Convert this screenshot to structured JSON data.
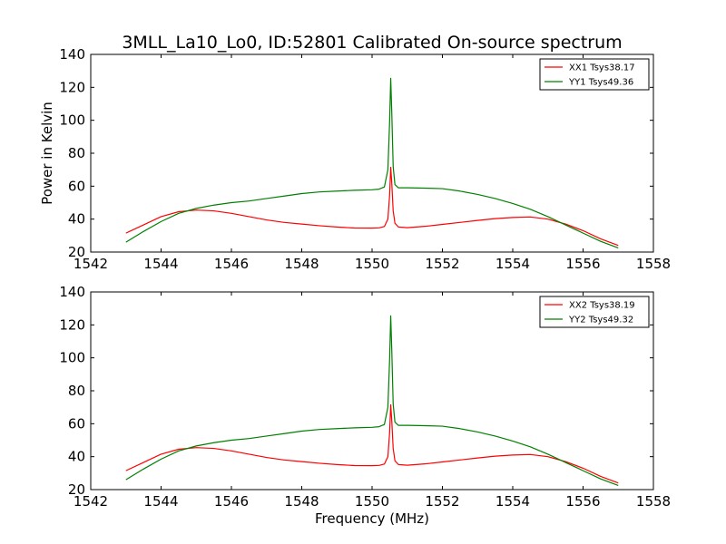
{
  "figure": {
    "title": "3MLL_La10_Lo0, ID:52801 Calibrated On-source spectrum",
    "ylabel": "Power in Kelvin",
    "xlabel": "Frequency (MHz)"
  },
  "chart_data": [
    {
      "type": "line",
      "title": "3MLL_La10_Lo0, ID:52801 Calibrated On-source spectrum",
      "ylabel": "Power in Kelvin",
      "xlabel": "",
      "xlim": [
        1542,
        1558
      ],
      "ylim": [
        20,
        140
      ],
      "xticks": [
        1542,
        1544,
        1546,
        1548,
        1550,
        1552,
        1554,
        1556,
        1558
      ],
      "yticks": [
        20,
        40,
        60,
        80,
        100,
        120,
        140
      ],
      "legend": "top-right",
      "series": [
        {
          "name": "XX1 Tsys38.17",
          "color": "#ff0000",
          "x": [
            1543.0,
            1543.5,
            1544.0,
            1544.5,
            1545.0,
            1545.5,
            1546.0,
            1546.5,
            1547.0,
            1547.5,
            1548.0,
            1548.5,
            1549.0,
            1549.5,
            1550.0,
            1550.2,
            1550.35,
            1550.45,
            1550.5,
            1550.53,
            1550.56,
            1550.6,
            1550.65,
            1550.75,
            1551.0,
            1551.5,
            1552.0,
            1552.5,
            1553.0,
            1553.5,
            1554.0,
            1554.5,
            1555.0,
            1555.5,
            1556.0,
            1556.5,
            1557.0
          ],
          "y": [
            31.5,
            36.5,
            41.5,
            44.5,
            45.5,
            45.0,
            43.5,
            41.5,
            39.5,
            38.0,
            37.0,
            36.0,
            35.2,
            34.6,
            34.5,
            34.7,
            35.5,
            40.0,
            55.0,
            71.5,
            62.0,
            45.0,
            37.5,
            35.2,
            34.8,
            35.6,
            36.8,
            38.0,
            39.2,
            40.3,
            41.0,
            41.3,
            40.0,
            37.0,
            33.0,
            28.0,
            24.0
          ]
        },
        {
          "name": "YY1 Tsys49.36",
          "color": "#008000",
          "x": [
            1543.0,
            1543.5,
            1544.0,
            1544.5,
            1545.0,
            1545.5,
            1546.0,
            1546.5,
            1547.0,
            1547.5,
            1548.0,
            1548.5,
            1549.0,
            1549.5,
            1550.0,
            1550.2,
            1550.35,
            1550.45,
            1550.5,
            1550.53,
            1550.56,
            1550.6,
            1550.65,
            1550.75,
            1551.0,
            1551.5,
            1552.0,
            1552.5,
            1553.0,
            1553.5,
            1554.0,
            1554.5,
            1555.0,
            1555.5,
            1556.0,
            1556.5,
            1557.0
          ],
          "y": [
            26.0,
            32.5,
            38.5,
            43.5,
            46.5,
            48.5,
            50.0,
            51.0,
            52.5,
            54.0,
            55.5,
            56.5,
            57.0,
            57.5,
            57.8,
            58.2,
            59.5,
            70.0,
            100.0,
            125.5,
            105.0,
            72.0,
            61.0,
            59.0,
            59.0,
            58.8,
            58.5,
            57.0,
            55.0,
            52.5,
            49.5,
            46.0,
            41.5,
            36.5,
            31.5,
            26.5,
            22.5
          ]
        }
      ]
    },
    {
      "type": "line",
      "title": "",
      "ylabel": "",
      "xlabel": "Frequency (MHz)",
      "xlim": [
        1542,
        1558
      ],
      "ylim": [
        20,
        140
      ],
      "xticks": [
        1542,
        1544,
        1546,
        1548,
        1550,
        1552,
        1554,
        1556,
        1558
      ],
      "yticks": [
        20,
        40,
        60,
        80,
        100,
        120,
        140
      ],
      "legend": "top-right",
      "series": [
        {
          "name": "XX2 Tsys38.19",
          "color": "#ff0000",
          "x": [
            1543.0,
            1543.5,
            1544.0,
            1544.5,
            1545.0,
            1545.5,
            1546.0,
            1546.5,
            1547.0,
            1547.5,
            1548.0,
            1548.5,
            1549.0,
            1549.5,
            1550.0,
            1550.2,
            1550.35,
            1550.45,
            1550.5,
            1550.53,
            1550.56,
            1550.6,
            1550.65,
            1550.75,
            1551.0,
            1551.5,
            1552.0,
            1552.5,
            1553.0,
            1553.5,
            1554.0,
            1554.5,
            1555.0,
            1555.5,
            1556.0,
            1556.5,
            1557.0
          ],
          "y": [
            31.5,
            36.5,
            41.5,
            44.5,
            45.5,
            45.0,
            43.5,
            41.5,
            39.5,
            38.0,
            37.0,
            36.0,
            35.2,
            34.6,
            34.5,
            34.7,
            35.5,
            40.0,
            55.0,
            71.5,
            62.0,
            45.0,
            37.5,
            35.2,
            34.8,
            35.6,
            36.8,
            38.0,
            39.2,
            40.3,
            41.0,
            41.3,
            40.0,
            37.0,
            33.0,
            28.0,
            24.0
          ]
        },
        {
          "name": "YY2 Tsys49.32",
          "color": "#008000",
          "x": [
            1543.0,
            1543.5,
            1544.0,
            1544.5,
            1545.0,
            1545.5,
            1546.0,
            1546.5,
            1547.0,
            1547.5,
            1548.0,
            1548.5,
            1549.0,
            1549.5,
            1550.0,
            1550.2,
            1550.35,
            1550.45,
            1550.5,
            1550.53,
            1550.56,
            1550.6,
            1550.65,
            1550.75,
            1551.0,
            1551.5,
            1552.0,
            1552.5,
            1553.0,
            1553.5,
            1554.0,
            1554.5,
            1555.0,
            1555.5,
            1556.0,
            1556.5,
            1557.0
          ],
          "y": [
            26.0,
            32.5,
            38.5,
            43.5,
            46.5,
            48.5,
            50.0,
            51.0,
            52.5,
            54.0,
            55.5,
            56.5,
            57.0,
            57.5,
            57.8,
            58.2,
            59.5,
            70.0,
            100.0,
            125.5,
            105.0,
            72.0,
            61.0,
            59.0,
            59.0,
            58.8,
            58.5,
            57.0,
            55.0,
            52.5,
            49.5,
            46.0,
            41.5,
            36.5,
            31.5,
            26.5,
            22.5
          ]
        }
      ]
    }
  ]
}
